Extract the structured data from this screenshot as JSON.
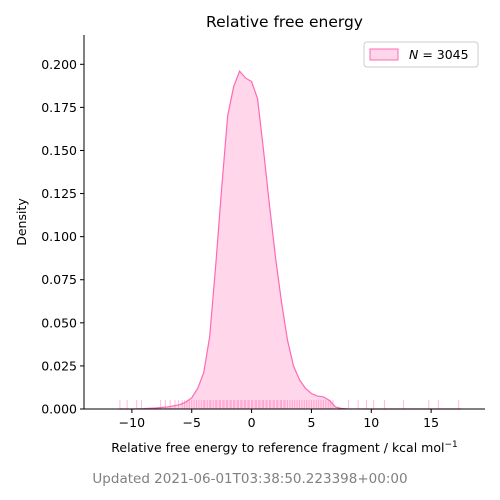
{
  "chart_data": {
    "type": "area",
    "title": "Relative free energy",
    "xlabel_main": "Relative free energy to reference fragment / kcal mol",
    "xlabel_sup": "−1",
    "ylabel": "Density",
    "xlim": [
      -14,
      19.5
    ],
    "ylim": [
      0,
      0.217
    ],
    "xticks": [
      -10,
      -5,
      0,
      5,
      10,
      15
    ],
    "xtick_labels": [
      "−10",
      "−5",
      "0",
      "5",
      "10",
      "15"
    ],
    "yticks": [
      0,
      0.025,
      0.05,
      0.075,
      0.1,
      0.125,
      0.15,
      0.175,
      0.2
    ],
    "ytick_labels": [
      "0.000",
      "0.025",
      "0.050",
      "0.075",
      "0.100",
      "0.125",
      "0.150",
      "0.175",
      "0.200"
    ],
    "legend": {
      "label_var": "N",
      "label_eq": " = ",
      "label_value": "3045",
      "placement": "top-right"
    },
    "line_color": "#ff69b4",
    "fill_color": "#ffd6ea",
    "rug_color": "#ff69b4",
    "grid": false,
    "series": [
      {
        "x": [
          -11.0,
          -10.0,
          -9.0,
          -8.0,
          -7.0,
          -6.0,
          -5.5,
          -5.0,
          -4.5,
          -4.0,
          -3.5,
          -3.0,
          -2.5,
          -2.0,
          -1.5,
          -1.0,
          -0.5,
          0.0,
          0.5,
          1.0,
          1.5,
          2.0,
          2.5,
          3.0,
          3.5,
          4.0,
          4.5,
          5.0,
          5.5,
          6.0,
          6.5,
          7.0,
          7.5,
          8.0,
          10.0,
          12.0,
          14.0,
          16.0,
          17.5
        ],
        "y": [
          0.0,
          0.0,
          0.0002,
          0.0006,
          0.0012,
          0.0025,
          0.004,
          0.0065,
          0.012,
          0.021,
          0.042,
          0.083,
          0.128,
          0.17,
          0.187,
          0.196,
          0.192,
          0.19,
          0.18,
          0.15,
          0.118,
          0.088,
          0.062,
          0.04,
          0.025,
          0.017,
          0.012,
          0.009,
          0.0075,
          0.007,
          0.005,
          0.0012,
          0.0003,
          0.0001,
          0.0,
          0.0,
          0.0,
          0.0,
          0.0
        ]
      }
    ],
    "rug_x": [
      -11.0,
      -10.4,
      -9.6,
      -9.2,
      -7.6,
      -7.2,
      -6.8,
      -6.4,
      -6.1,
      -5.8,
      -5.6,
      -5.4,
      -5.2,
      -5.0,
      -4.8,
      -4.6,
      -4.4,
      -4.2,
      -4.0,
      -3.9,
      -3.7,
      -3.5,
      -3.4,
      -3.2,
      -3.0,
      -2.9,
      -2.7,
      -2.6,
      -2.4,
      -2.3,
      -2.1,
      -2.0,
      -1.8,
      -1.7,
      -1.5,
      -1.4,
      -1.2,
      -1.1,
      -0.9,
      -0.8,
      -0.6,
      -0.5,
      -0.3,
      -0.2,
      0.0,
      0.1,
      0.3,
      0.4,
      0.6,
      0.7,
      0.9,
      1.0,
      1.2,
      1.3,
      1.5,
      1.6,
      1.8,
      1.9,
      2.1,
      2.2,
      2.4,
      2.5,
      2.7,
      2.8,
      3.0,
      3.2,
      3.4,
      3.6,
      3.8,
      4.0,
      4.2,
      4.4,
      4.6,
      4.8,
      5.0,
      5.2,
      5.4,
      5.6,
      5.8,
      6.0,
      6.2,
      6.4,
      6.6,
      6.8,
      8.1,
      8.9,
      9.6,
      10.2,
      11.1,
      12.7,
      14.8,
      15.6,
      17.3
    ]
  },
  "footer_text": "Updated 2021-06-01T03:38:50.223398+00:00"
}
